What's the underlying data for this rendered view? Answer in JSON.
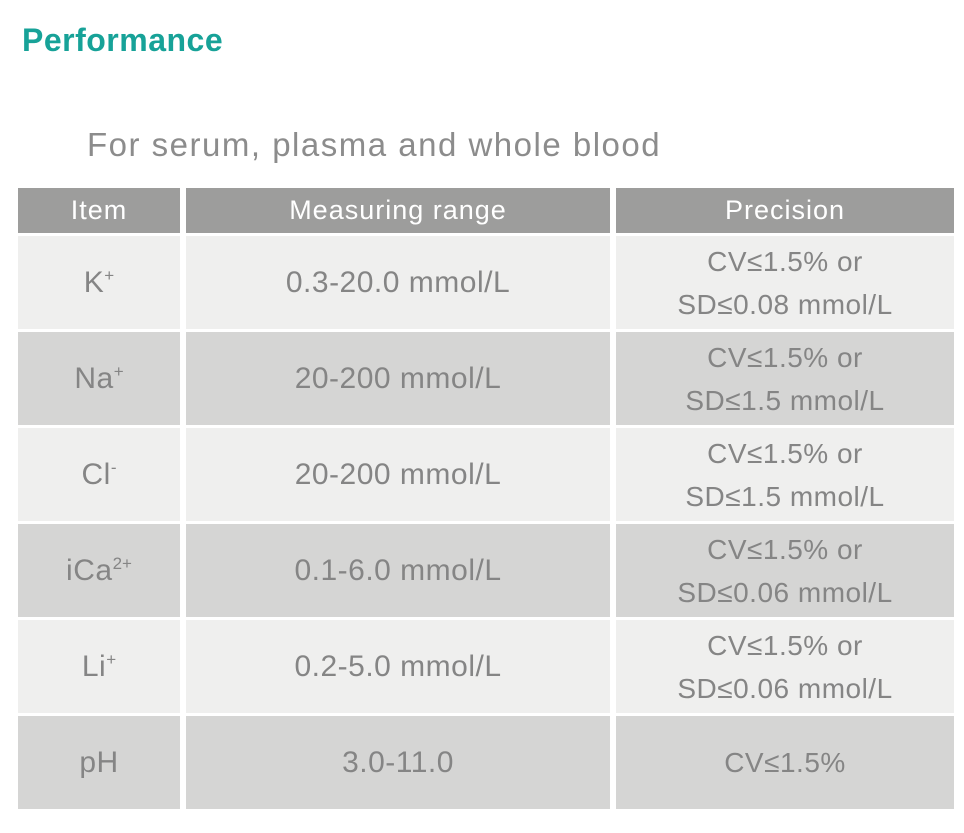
{
  "page": {
    "title": "Performance",
    "subtitle": "For serum, plasma and whole blood"
  },
  "colors": {
    "accent": "#17a298",
    "header_bg": "#9d9d9c",
    "row_light": "#efefee",
    "row_dark": "#d5d5d4",
    "text_gray": "#858585",
    "header_text": "#ffffff"
  },
  "table": {
    "headers": [
      "Item",
      "Measuring range",
      "Precision"
    ],
    "rows": [
      {
        "item_base": "K",
        "item_sup": "+",
        "range": "0.3-20.0 mmol/L",
        "precision_line1": "CV≤1.5% or",
        "precision_line2": "SD≤0.08 mmol/L"
      },
      {
        "item_base": "Na",
        "item_sup": "+",
        "range": "20-200 mmol/L",
        "precision_line1": "CV≤1.5% or",
        "precision_line2": "SD≤1.5 mmol/L"
      },
      {
        "item_base": "Cl",
        "item_sup": "-",
        "range": "20-200 mmol/L",
        "precision_line1": "CV≤1.5% or",
        "precision_line2": "SD≤1.5 mmol/L"
      },
      {
        "item_base": "iCa",
        "item_sup": "2+",
        "range": "0.1-6.0 mmol/L",
        "precision_line1": "CV≤1.5% or",
        "precision_line2": "SD≤0.06 mmol/L"
      },
      {
        "item_base": "Li",
        "item_sup": "+",
        "range": "0.2-5.0 mmol/L",
        "precision_line1": "CV≤1.5% or",
        "precision_line2": "SD≤0.06 mmol/L"
      },
      {
        "item_base": "pH",
        "item_sup": "",
        "range": "3.0-11.0",
        "precision_line1": "CV≤1.5%",
        "precision_line2": ""
      }
    ]
  }
}
